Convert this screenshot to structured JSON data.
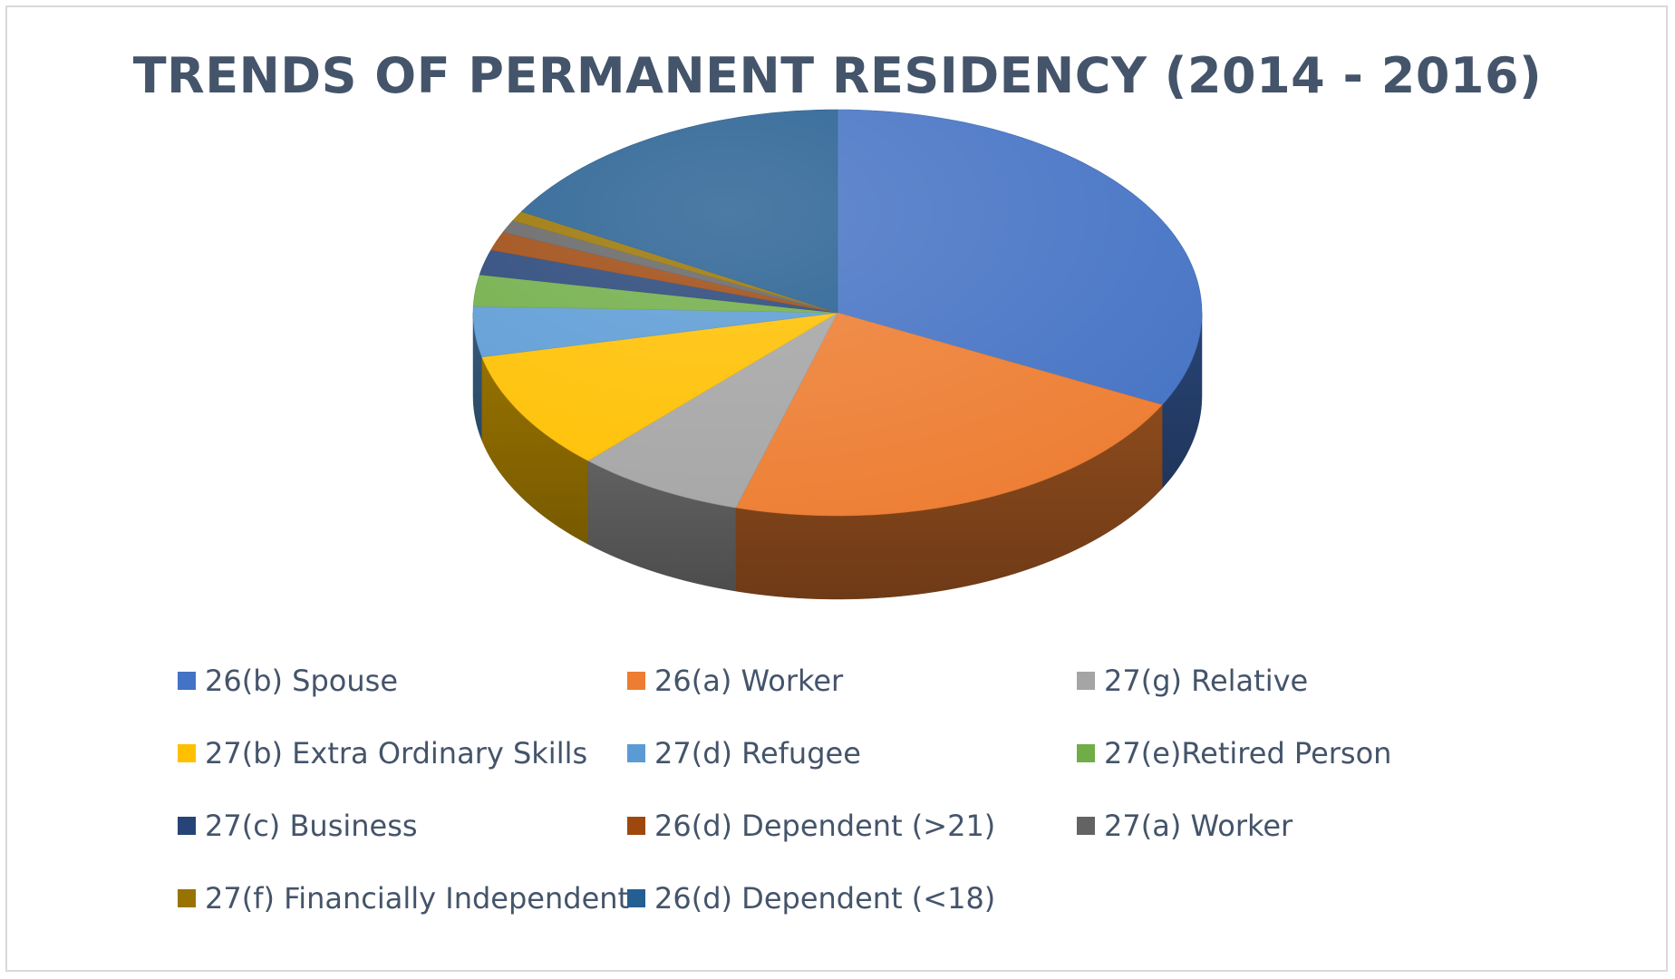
{
  "chart_data": {
    "type": "pie",
    "style": "3d",
    "title": "TRENDS OF PERMANENT RESIDENCY (2014 - 2016)",
    "legend_position": "bottom",
    "series": [
      {
        "name": "26(b) Spouse",
        "value": 32.5,
        "color": "#4472c4"
      },
      {
        "name": "26(a) Worker",
        "value": 22.0,
        "color": "#ed7d31"
      },
      {
        "name": "27(g) Relative",
        "value": 7.5,
        "color": "#a5a5a5"
      },
      {
        "name": "27(b) Extra Ordinary Skills",
        "value": 9.5,
        "color": "#ffc000"
      },
      {
        "name": "27(d) Refugee",
        "value": 4.0,
        "color": "#5b9bd5"
      },
      {
        "name": "27(e)Retired Person",
        "value": 2.5,
        "color": "#70ad47"
      },
      {
        "name": "27(c) Business",
        "value": 2.0,
        "color": "#264478"
      },
      {
        "name": "26(d) Dependent (>21)",
        "value": 1.5,
        "color": "#9e480e"
      },
      {
        "name": "27(a) Worker",
        "value": 1.0,
        "color": "#636363"
      },
      {
        "name": "27(f) Financially Independent",
        "value": 0.8,
        "color": "#997300"
      },
      {
        "name": "26(d) Dependent (<18)",
        "value": 16.7,
        "color": "#255e91"
      }
    ]
  }
}
